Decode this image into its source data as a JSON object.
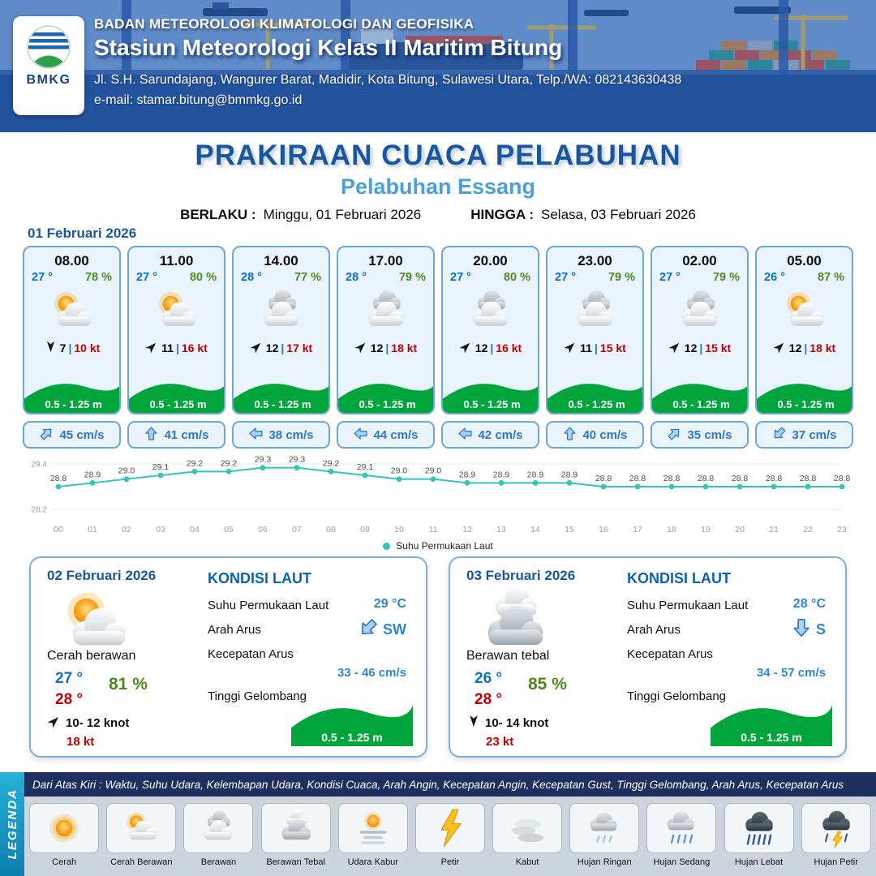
{
  "colors": {
    "header_blue": "#2e5fae",
    "title_blue": "#1a56a0",
    "subtitle_blue": "#4ba0d8",
    "accent_blue": "#2e75c3",
    "temp_blue": "#0b6fc2",
    "humidity_green": "#4e8a1f",
    "gust_red": "#c00000",
    "wave_green": "#00a53c",
    "chart_teal": "#35c4b5"
  },
  "header": {
    "logo_text": "BMKG",
    "agency": "BADAN METEOROLOGI KLIMATOLOGI DAN GEOFISIKA",
    "station": "Stasiun Meteorologi Kelas II Maritim Bitung",
    "address": "Jl. S.H. Sarundajang, Wangurer Barat, Madidir, Kota Bitung, Sulawesi Utara, Telp./WA: 082143630438",
    "email": "e-mail: stamar.bitung@bmmkg.go.id"
  },
  "title": {
    "main": "PRAKIRAAN CUACA PELABUHAN",
    "subtitle": "Pelabuhan Essang",
    "berlaku_label": "BERLAKU :",
    "berlaku_value": "Minggu, 01 Februari 2026",
    "hingga_label": "HINGGA :",
    "hingga_value": "Selasa, 03 Februari 2026"
  },
  "day1": {
    "date": "01 Februari 2026",
    "cards": [
      {
        "time": "08.00",
        "temp": "27 °",
        "humidity": "78 %",
        "icon": "sun-cloud",
        "wind_deg": 180,
        "wind": "7",
        "gust": "10 kt",
        "wave": "0.5 - 1.25 m",
        "current_deg": 45,
        "current": "45 cm/s"
      },
      {
        "time": "11.00",
        "temp": "27 °",
        "humidity": "80 %",
        "icon": "sun-cloud",
        "wind_deg": 45,
        "wind": "11",
        "gust": "16 kt",
        "wave": "0.5 - 1.25 m",
        "current_deg": 0,
        "current": "41 cm/s"
      },
      {
        "time": "14.00",
        "temp": "28 °",
        "humidity": "77 %",
        "icon": "cloud",
        "wind_deg": 45,
        "wind": "12",
        "gust": "17 kt",
        "wave": "0.5 - 1.25 m",
        "current_deg": 270,
        "current": "38 cm/s"
      },
      {
        "time": "17.00",
        "temp": "28 °",
        "humidity": "79 %",
        "icon": "cloud",
        "wind_deg": 45,
        "wind": "12",
        "gust": "18 kt",
        "wave": "0.5 - 1.25 m",
        "current_deg": 270,
        "current": "44 cm/s"
      },
      {
        "time": "20.00",
        "temp": "27 °",
        "humidity": "80 %",
        "icon": "cloud",
        "wind_deg": 45,
        "wind": "12",
        "gust": "16 kt",
        "wave": "0.5 - 1.25 m",
        "current_deg": 270,
        "current": "42 cm/s"
      },
      {
        "time": "23.00",
        "temp": "27 °",
        "humidity": "79 %",
        "icon": "cloud",
        "wind_deg": 45,
        "wind": "11",
        "gust": "15 kt",
        "wave": "0.5 - 1.25 m",
        "current_deg": 0,
        "current": "40 cm/s"
      },
      {
        "time": "02.00",
        "temp": "27 °",
        "humidity": "79 %",
        "icon": "cloud",
        "wind_deg": 45,
        "wind": "12",
        "gust": "15 kt",
        "wave": "0.5 - 1.25 m",
        "current_deg": 45,
        "current": "35 cm/s"
      },
      {
        "time": "05.00",
        "temp": "26 °",
        "humidity": "87 %",
        "icon": "sun-cloud",
        "wind_deg": 45,
        "wind": "12",
        "gust": "18 kt",
        "wave": "0.5 - 1.25 m",
        "current_deg": 225,
        "current": "37 cm/s"
      }
    ]
  },
  "chart_data": {
    "type": "line",
    "legend": "Suhu Permukaan Laut",
    "legend_position": "bottom",
    "x": [
      "00",
      "01",
      "02",
      "03",
      "04",
      "05",
      "06",
      "07",
      "08",
      "09",
      "10",
      "11",
      "12",
      "13",
      "14",
      "15",
      "16",
      "17",
      "18",
      "19",
      "20",
      "21",
      "22",
      "23"
    ],
    "values": [
      28.8,
      28.9,
      29.0,
      29.1,
      29.2,
      29.2,
      29.3,
      29.3,
      29.2,
      29.1,
      29.0,
      29.0,
      28.9,
      28.9,
      28.9,
      28.9,
      28.8,
      28.8,
      28.8,
      28.8,
      28.8,
      28.8,
      28.8,
      28.8
    ],
    "ylim": [
      28.2,
      29.4
    ],
    "yticks": [
      28.2,
      29.4
    ],
    "line_color": "#35c4b5",
    "grid": true
  },
  "sea_labels": {
    "title": "KONDISI LAUT",
    "sst": "Suhu Permukaan Laut",
    "arah": "Arah Arus",
    "kecepatan": "Kecepatan Arus",
    "tinggi": "Tinggi Gelombang"
  },
  "day2": {
    "date": "02 Februari 2026",
    "icon": "sun-cloud",
    "condition": "Cerah berawan",
    "temp_min": "27 °",
    "temp_max": "28 °",
    "humidity": "81 %",
    "wind_deg": 45,
    "wind": "10- 12 knot",
    "gust": "18 kt",
    "sea": {
      "sst": "29 °C",
      "current_dir": "SW",
      "current_dir_deg": 225,
      "current_speed": "33 - 46 cm/s",
      "wave": "0.5 - 1.25 m"
    }
  },
  "day3": {
    "date": "03 Februari 2026",
    "icon": "cloud-thick",
    "condition": "Berawan tebal",
    "temp_min": "26 °",
    "temp_max": "28 °",
    "humidity": "85 %",
    "wind_deg": 180,
    "wind": "10- 14 knot",
    "gust": "23 kt",
    "sea": {
      "sst": "28 °C",
      "current_dir": "S",
      "current_dir_deg": 180,
      "current_speed": "34 - 57 cm/s",
      "wave": "0.5 - 1.25 m"
    }
  },
  "footer": {
    "note": "Dari Atas Kiri : Waktu, Suhu Udara, Kelembapan Udara, Kondisi Cuaca, Arah Angin, Kecepatan Angin, Kecepatan Gust, Tinggi Gelombang, Arah Arus, Kecepatan Arus",
    "legend_title": "LEGENDA",
    "legend_items": [
      {
        "label": "Cerah",
        "icon": "sun"
      },
      {
        "label": "Cerah Berawan",
        "icon": "sun-cloud"
      },
      {
        "label": "Berawan",
        "icon": "cloud"
      },
      {
        "label": "Berawan Tebal",
        "icon": "cloud-thick"
      },
      {
        "label": "Udara Kabur",
        "icon": "haze"
      },
      {
        "label": "Petir",
        "icon": "thunder"
      },
      {
        "label": "Kabut",
        "icon": "fog"
      },
      {
        "label": "Hujan Ringan",
        "icon": "rain-light"
      },
      {
        "label": "Hujan Sedang",
        "icon": "rain-medium"
      },
      {
        "label": "Hujan Lebat",
        "icon": "rain-heavy"
      },
      {
        "label": "Hujan Petir",
        "icon": "rain-thunder"
      }
    ]
  }
}
